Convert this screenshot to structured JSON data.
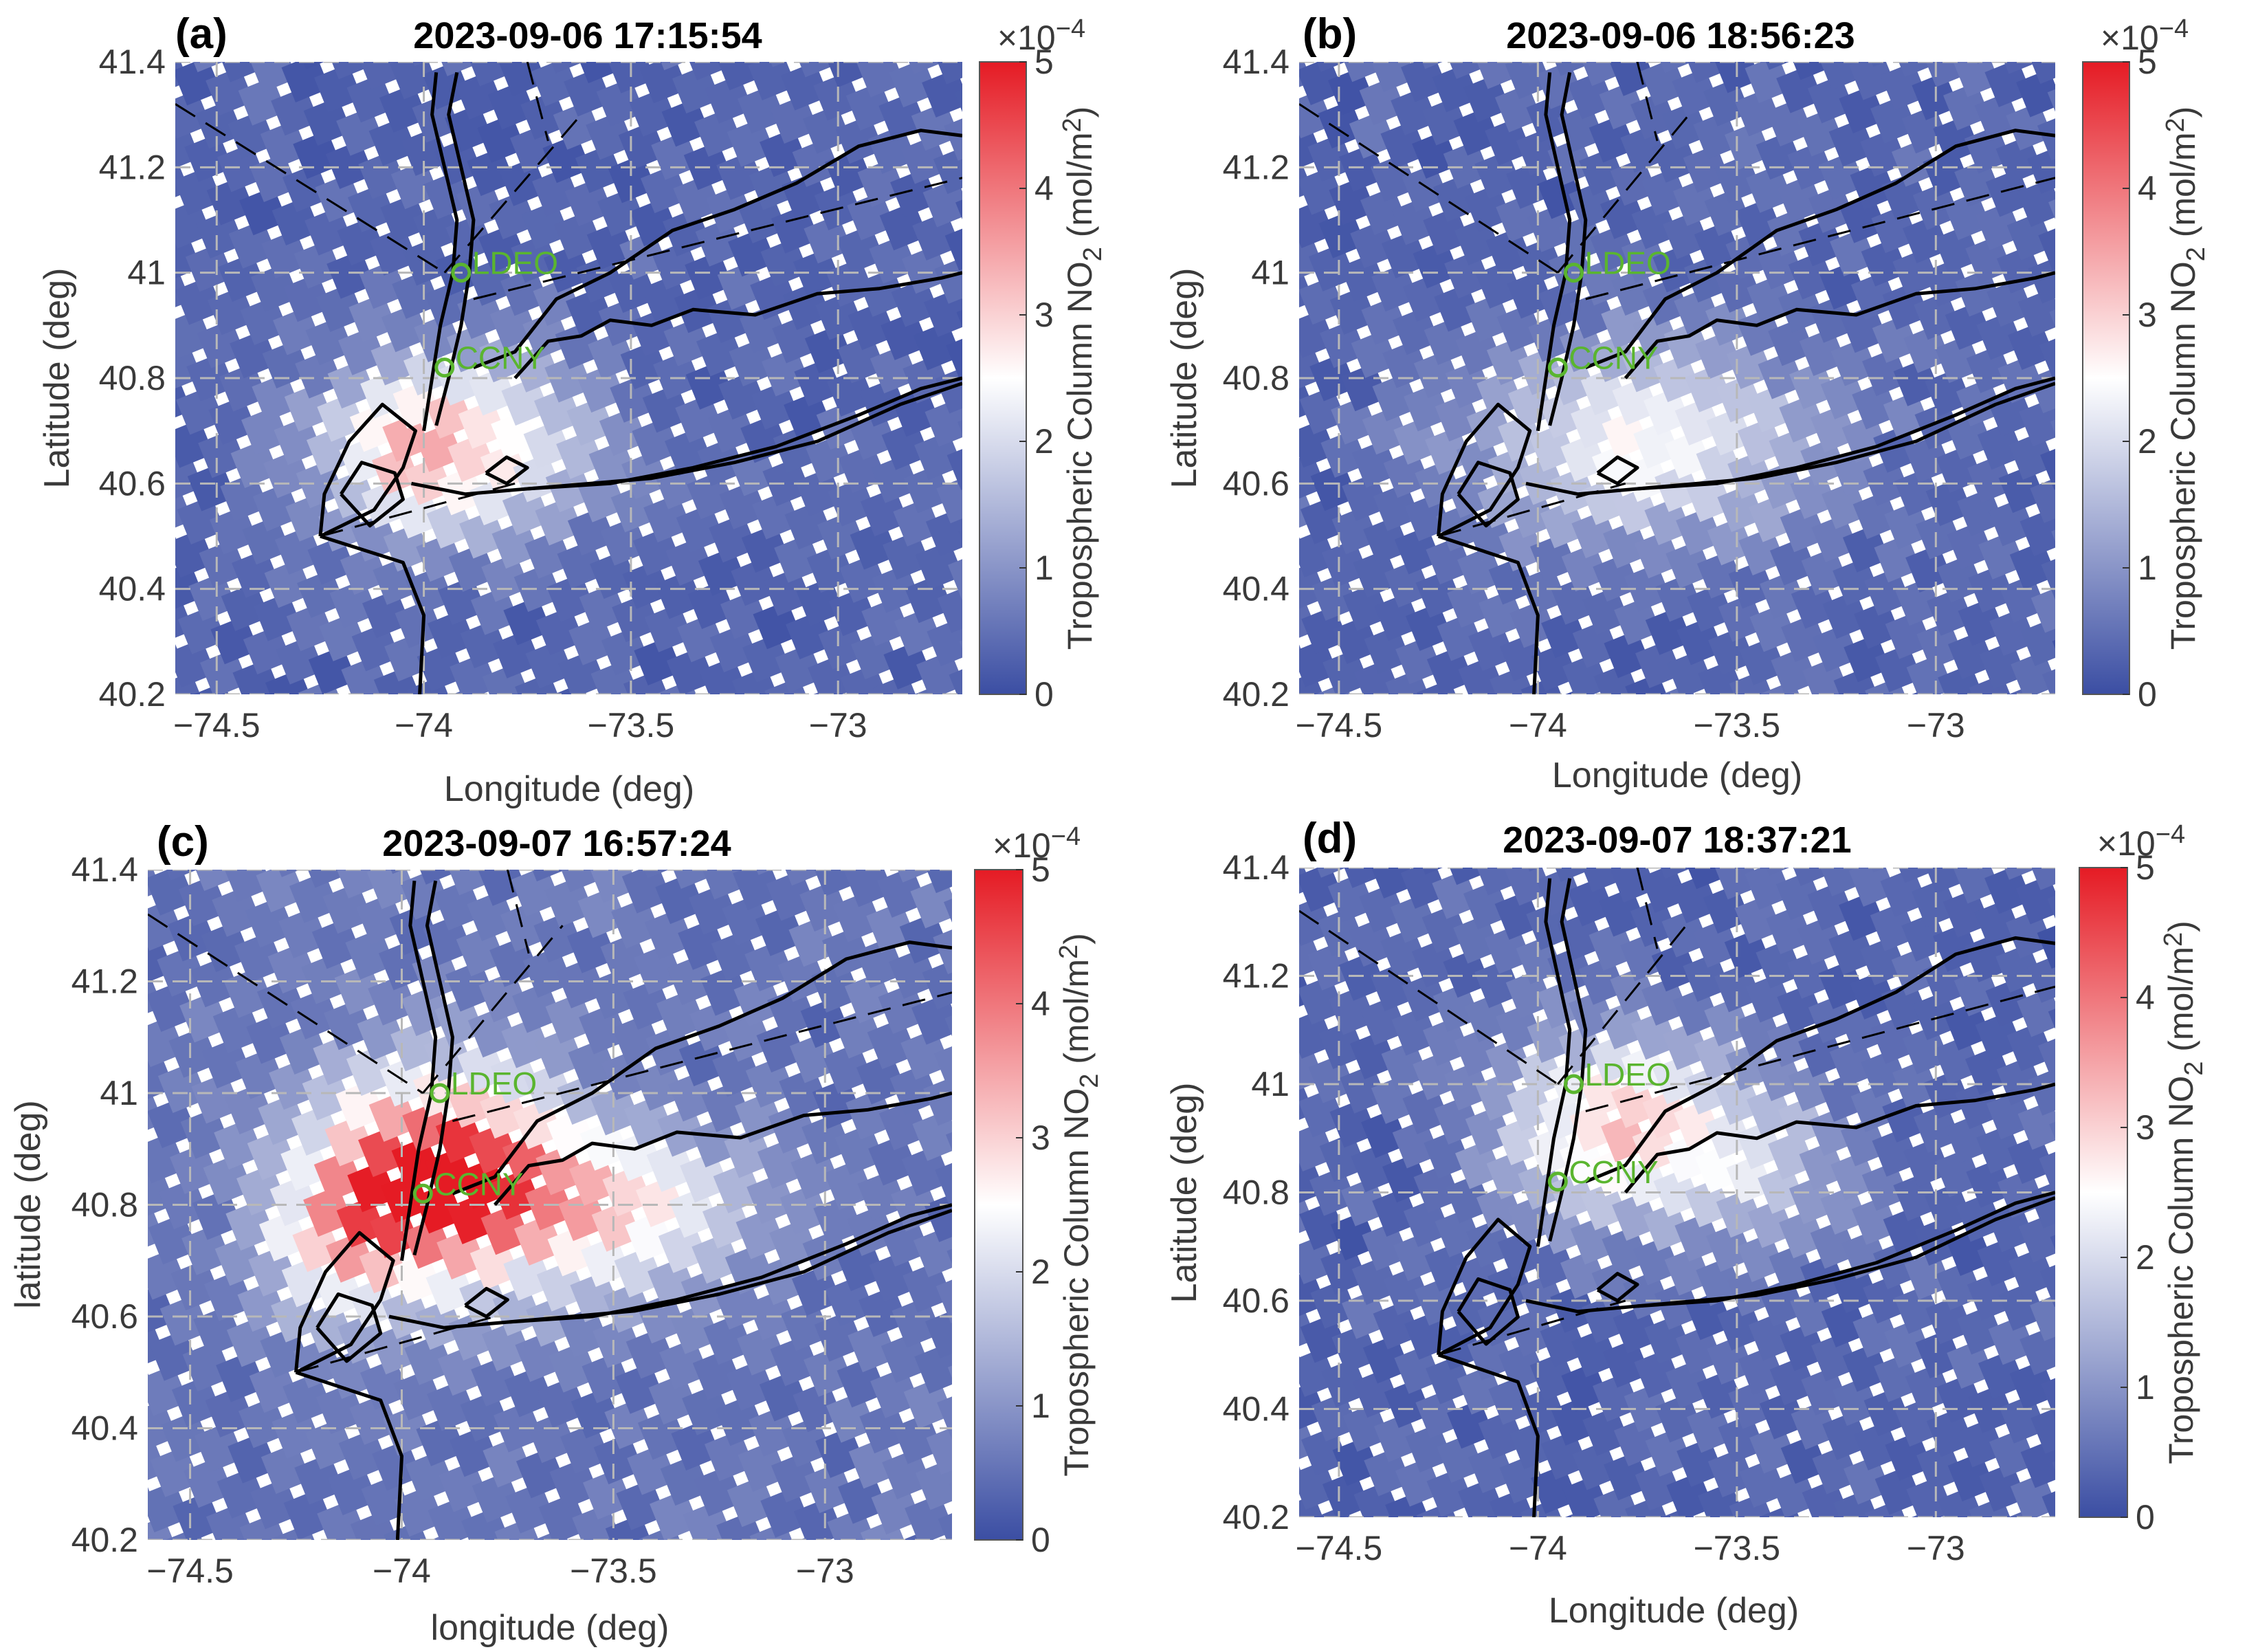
{
  "colorbar": {
    "label": "Tropospheric Column NO",
    "label_sub": "2",
    "units_open": "(mol/m",
    "units_sup": "2",
    "units_close": ")",
    "multiplier_base": "×10",
    "multiplier_exp": "−4",
    "ticks": [
      "0",
      "1",
      "2",
      "3",
      "4",
      "5"
    ],
    "range": [
      0,
      5
    ],
    "colors": {
      "low": "#3b4ea3",
      "mid": "#ffffff",
      "high": "#e51b24"
    }
  },
  "axes": {
    "x_ticks": [
      "−74.5",
      "−74",
      "−73.5",
      "−73"
    ],
    "x_values": [
      -74.5,
      -74,
      -73.5,
      -73
    ],
    "y_ticks": [
      "40.2",
      "40.4",
      "40.6",
      "40.8",
      "41",
      "41.2",
      "41.4"
    ],
    "y_values": [
      40.2,
      40.4,
      40.6,
      40.8,
      41.0,
      41.2,
      41.4
    ],
    "xlim": [
      -74.6,
      -72.7
    ],
    "ylim": [
      40.2,
      41.4
    ]
  },
  "stations": [
    {
      "name": "LDEO",
      "lon": -73.91,
      "lat": 41.0
    },
    {
      "name": "CCNY",
      "lon": -73.95,
      "lat": 40.82
    }
  ],
  "colors": {
    "station": "#5ab52f",
    "coast": "#000000",
    "grid": "#b8b8b8"
  },
  "panels": [
    {
      "label": "(a)",
      "title": "2023-09-06 17:15:54",
      "xlabel": "Longitude (deg)",
      "ylabel": "Latitude (deg)"
    },
    {
      "label": "(b)",
      "title": "2023-09-06 18:56:23",
      "xlabel": "Longitude (deg)",
      "ylabel": "Latitude (deg)"
    },
    {
      "label": "(c)",
      "title": "2023-09-07 16:57:24",
      "xlabel": "longitude (deg)",
      "ylabel": "latitude (deg)"
    },
    {
      "label": "(d)",
      "title": "2023-09-07 18:37:21",
      "xlabel": "Longitude (deg)",
      "ylabel": "Latitude (deg)"
    }
  ],
  "chart_data": [
    {
      "type": "heatmap",
      "title": "2023-09-06 17:15:54",
      "xlabel": "Longitude (deg)",
      "ylabel": "Latitude (deg)",
      "xlim": [
        -74.6,
        -72.7
      ],
      "ylim": [
        40.2,
        41.4
      ],
      "value_units": "1e-4 mol/m2",
      "plumes": [
        {
          "lon": -73.92,
          "lat": 40.68,
          "peak": 2.7,
          "spread_lon": 0.22,
          "spread_lat": 0.12
        },
        {
          "lon": -74.05,
          "lat": 40.63,
          "peak": 0.9,
          "spread_lon": 0.1,
          "spread_lat": 0.08
        }
      ],
      "background": 0.35
    },
    {
      "type": "heatmap",
      "title": "2023-09-06 18:56:23",
      "xlabel": "Longitude (deg)",
      "ylabel": "Latitude (deg)",
      "xlim": [
        -74.6,
        -72.7
      ],
      "ylim": [
        40.2,
        41.4
      ],
      "value_units": "1e-4 mol/m2",
      "plumes": [
        {
          "lon": -73.72,
          "lat": 40.68,
          "peak": 2.1,
          "spread_lon": 0.3,
          "spread_lat": 0.13
        }
      ],
      "background": 0.35
    },
    {
      "type": "heatmap",
      "title": "2023-09-07 16:57:24",
      "xlabel": "longitude (deg)",
      "ylabel": "latitude (deg)",
      "xlim": [
        -74.6,
        -72.7
      ],
      "ylim": [
        40.2,
        41.4
      ],
      "value_units": "1e-4 mol/m2",
      "plumes": [
        {
          "lon": -73.92,
          "lat": 40.85,
          "peak": 4.6,
          "spread_lon": 0.2,
          "spread_lat": 0.13
        },
        {
          "lon": -73.5,
          "lat": 40.8,
          "peak": 2.3,
          "spread_lon": 0.22,
          "spread_lat": 0.1
        },
        {
          "lon": -74.15,
          "lat": 40.72,
          "peak": 1.6,
          "spread_lon": 0.12,
          "spread_lat": 0.1
        }
      ],
      "background": 0.55
    },
    {
      "type": "heatmap",
      "title": "2023-09-07 18:37:21",
      "xlabel": "Longitude (deg)",
      "ylabel": "Latitude (deg)",
      "xlim": [
        -74.6,
        -72.7
      ],
      "ylim": [
        40.2,
        41.4
      ],
      "value_units": "1e-4 mol/m2",
      "plumes": [
        {
          "lon": -73.8,
          "lat": 40.93,
          "peak": 2.6,
          "spread_lon": 0.2,
          "spread_lat": 0.12
        },
        {
          "lon": -73.45,
          "lat": 40.85,
          "peak": 1.3,
          "spread_lon": 0.18,
          "spread_lat": 0.1
        }
      ],
      "background": 0.35
    }
  ]
}
